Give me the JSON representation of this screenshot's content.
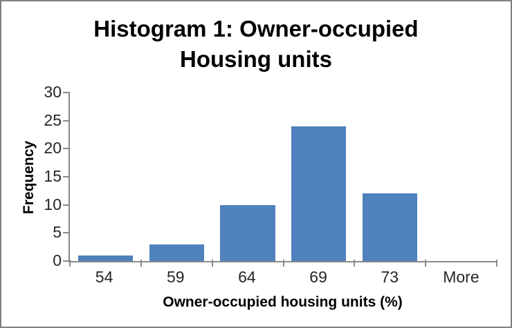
{
  "window": {
    "frame_border_color": "#808080",
    "background_color": "#FFFFFF"
  },
  "chart_data": {
    "type": "bar",
    "title": "Histogram 1: Owner-occupied Housing units",
    "xlabel": "Owner-occupied housing units (%)",
    "ylabel": "Frequency",
    "categories": [
      "54",
      "59",
      "64",
      "69",
      "73",
      "More"
    ],
    "values": [
      1,
      3,
      10,
      24,
      12,
      0
    ],
    "ylim": [
      0,
      30
    ],
    "y_ticks": [
      0,
      5,
      10,
      15,
      20,
      25,
      30
    ],
    "grid": "off",
    "legend": "none",
    "bar_color": "#4F81BD",
    "axis_color": "#898989",
    "tick_label_color": "#262626",
    "title_color": "#000000"
  }
}
